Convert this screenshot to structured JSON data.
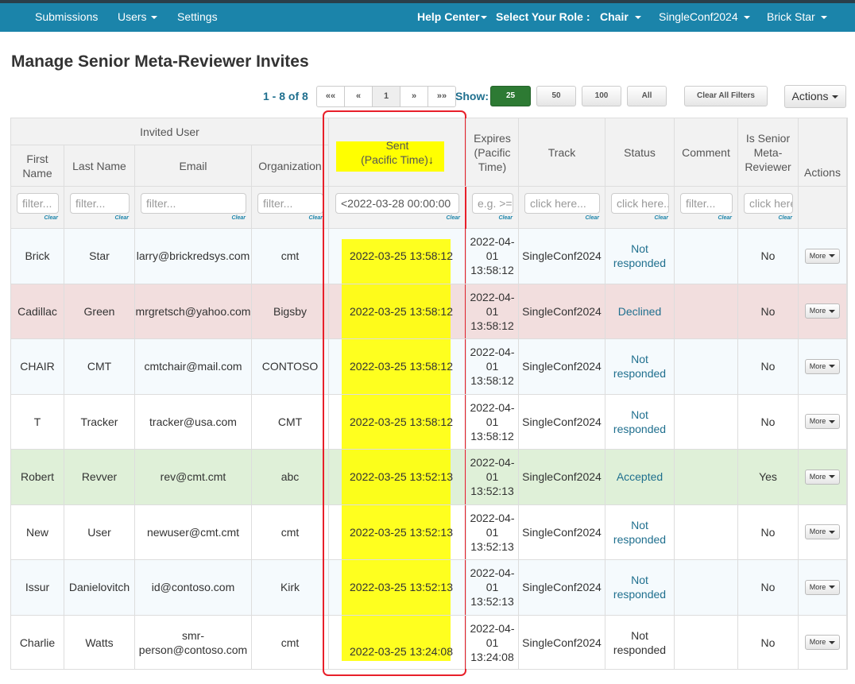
{
  "nav": {
    "left": [
      "Submissions",
      "Users",
      "Settings"
    ],
    "help_center": "Help Center",
    "role_label": "Select Your Role :",
    "role_value": "Chair",
    "conference": "SingleConf2024",
    "user": "Brick Star"
  },
  "page_title": "Manage Senior Meta-Reviewer Invites",
  "toolbar": {
    "count": "1 - 8 of 8",
    "pager": [
      "««",
      "«",
      "1",
      "»",
      "»»"
    ],
    "show_label": "Show:",
    "show_options": [
      "25",
      "50",
      "100",
      "All"
    ],
    "clear_filters": "Clear All Filters",
    "actions": "Actions"
  },
  "table": {
    "group_header": "Invited User",
    "headers": {
      "first": "First Name",
      "last": "Last Name",
      "email": "Email",
      "org": "Organization",
      "sent": "Sent",
      "sent_sub": "(Pacific Time)",
      "expires": "Expires (Pacific Time)",
      "track": "Track",
      "status": "Status",
      "comment": "Comment",
      "is_smr": "Is Senior Meta-Reviewer",
      "actions": "Actions"
    },
    "filters": {
      "first": "filter...",
      "last": "filter...",
      "email": "filter...",
      "org": "filter...",
      "sent": "<2022-03-28 00:00:00",
      "expires": "e.g. >= ...",
      "track": "click here...",
      "status": "click here...",
      "comment": "filter...",
      "is_smr": "click here...",
      "clear": "Clear"
    },
    "more_label": "More",
    "rows": [
      {
        "first": "Brick",
        "last": "Star",
        "email": "larry@brickredsys.com",
        "org": "cmt",
        "sent": "2022-03-25 13:58:12",
        "expires": "2022-04-01 13:58:12",
        "track": "SingleConf2024",
        "status": "Not responded",
        "comment": "",
        "is_smr": "No"
      },
      {
        "first": "Cadillac",
        "last": "Green",
        "email": "mrgretsch@yahoo.com",
        "org": "Bigsby",
        "sent": "2022-03-25 13:58:12",
        "expires": "2022-04-01 13:58:12",
        "track": "SingleConf2024",
        "status": "Declined",
        "comment": "",
        "is_smr": "No"
      },
      {
        "first": "CHAIR",
        "last": "CMT",
        "email": "cmtchair@mail.com",
        "org": "CONTOSO",
        "sent": "2022-03-25 13:58:12",
        "expires": "2022-04-01 13:58:12",
        "track": "SingleConf2024",
        "status": "Not responded",
        "comment": "",
        "is_smr": "No"
      },
      {
        "first": "T",
        "last": "Tracker",
        "email": "tracker@usa.com",
        "org": "CMT",
        "sent": "2022-03-25 13:58:12",
        "expires": "2022-04-01 13:58:12",
        "track": "SingleConf2024",
        "status": "Not responded",
        "comment": "",
        "is_smr": "No"
      },
      {
        "first": "Robert",
        "last": "Revver",
        "email": "rev@cmt.cmt",
        "org": "abc",
        "sent": "2022-03-25 13:52:13",
        "expires": "2022-04-01 13:52:13",
        "track": "SingleConf2024",
        "status": "Accepted",
        "comment": "",
        "is_smr": "Yes"
      },
      {
        "first": "New",
        "last": "User",
        "email": "newuser@cmt.cmt",
        "org": "cmt",
        "sent": "2022-03-25 13:52:13",
        "expires": "2022-04-01 13:52:13",
        "track": "SingleConf2024",
        "status": "Not responded",
        "comment": "",
        "is_smr": "No"
      },
      {
        "first": "Issur",
        "last": "Danielovitch",
        "email": "id@contoso.com",
        "org": "Kirk",
        "sent": "2022-03-25 13:52:13",
        "expires": "2022-04-01 13:52:13",
        "track": "SingleConf2024",
        "status": "Not responded",
        "comment": "",
        "is_smr": "No"
      },
      {
        "first": "Charlie",
        "last": "Watts",
        "email": "smr-person@contoso.com",
        "org": "cmt",
        "sent": "2022-03-25 13:24:08",
        "expires": "2022-04-01 13:24:08",
        "track": "SingleConf2024",
        "status": "Not responded",
        "comment": "",
        "is_smr": "No"
      }
    ]
  },
  "colors": {
    "navbar": "#1b84aa",
    "highlight": "#ffff00",
    "outline": "#e8202a",
    "row_declined": "#f2dede",
    "row_accepted": "#dff0d8",
    "row_striped": "#f5fafd"
  }
}
